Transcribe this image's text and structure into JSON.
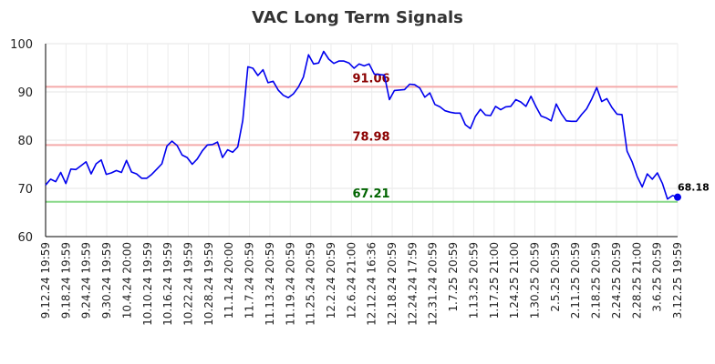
{
  "chart_data": {
    "type": "line",
    "title": "VAC Long Term Signals",
    "ylim": [
      60,
      100
    ],
    "yticks": [
      60,
      70,
      80,
      90,
      100
    ],
    "grid": true,
    "line_color": "#0000ee",
    "x_labels": [
      "9.12.24 19:59",
      "9.18.24 19:59",
      "9.24.24 19:59",
      "9.30.24 19:59",
      "10.4.24 20:00",
      "10.10.24 19:59",
      "10.16.24 19:59",
      "10.22.24 19:59",
      "10.28.24 19:59",
      "11.1.24 20:00",
      "11.7.24 20:59",
      "11.13.24 20:59",
      "11.19.24 20:59",
      "11.25.24 20:59",
      "12.2.24 20:59",
      "12.6.24 21:00",
      "12.12.24 16:36",
      "12.18.24 20:59",
      "12.24.24 17:59",
      "12.31.24 20:59",
      "1.7.25 20:59",
      "1.13.25 20:59",
      "1.17.25 21:00",
      "1.24.25 21:00",
      "1.30.25 20:59",
      "2.5.25 20:59",
      "2.11.25 20:59",
      "2.18.25 20:59",
      "2.24.25 20:59",
      "2.28.25 21:00",
      "3.6.25 20:59",
      "3.12.25 19:59"
    ],
    "values": [
      70.7,
      71.9,
      71.4,
      73.3,
      71.0,
      74.0,
      73.9,
      74.7,
      75.5,
      73.0,
      75.1,
      75.9,
      72.9,
      73.2,
      73.7,
      73.3,
      75.8,
      73.4,
      73.0,
      72.1,
      72.1,
      72.9,
      74.0,
      75.1,
      78.8,
      79.8,
      78.9,
      76.9,
      76.4,
      75.0,
      76.1,
      77.8,
      79.0,
      79.1,
      79.6,
      76.4,
      78.0,
      77.5,
      78.6,
      84.1,
      95.2,
      94.9,
      93.4,
      94.6,
      91.9,
      92.2,
      90.4,
      89.3,
      88.8,
      89.6,
      91.0,
      93.1,
      97.7,
      95.8,
      96.0,
      98.4,
      96.8,
      95.9,
      96.4,
      96.4,
      96.0,
      94.9,
      95.8,
      95.4,
      95.8,
      93.7,
      93.6,
      93.5,
      88.4,
      90.3,
      90.4,
      90.5,
      91.6,
      91.5,
      90.8,
      88.9,
      89.8,
      87.4,
      86.9,
      86.1,
      85.8,
      85.6,
      85.6,
      83.2,
      82.4,
      84.9,
      86.4,
      85.2,
      85.1,
      87.0,
      86.3,
      86.9,
      87.0,
      88.4,
      87.9,
      87.0,
      89.1,
      86.9,
      85.0,
      84.6,
      84.0,
      87.5,
      85.5,
      84.0,
      83.9,
      83.9,
      85.3,
      86.5,
      88.5,
      90.9,
      88.0,
      88.6,
      86.8,
      85.4,
      85.3,
      77.7,
      75.5,
      72.5,
      70.3,
      73.0,
      71.9,
      73.2,
      71.0,
      67.8,
      68.5,
      68.18
    ],
    "levels": [
      {
        "value": "91.06",
        "color": "#8b0000",
        "line_color": "#f4aaaa"
      },
      {
        "value": "78.98",
        "color": "#8b0000",
        "line_color": "#f4aaaa"
      },
      {
        "value": "67.21",
        "color": "#006400",
        "line_color": "#88d888"
      }
    ],
    "last_label": "68.18"
  }
}
